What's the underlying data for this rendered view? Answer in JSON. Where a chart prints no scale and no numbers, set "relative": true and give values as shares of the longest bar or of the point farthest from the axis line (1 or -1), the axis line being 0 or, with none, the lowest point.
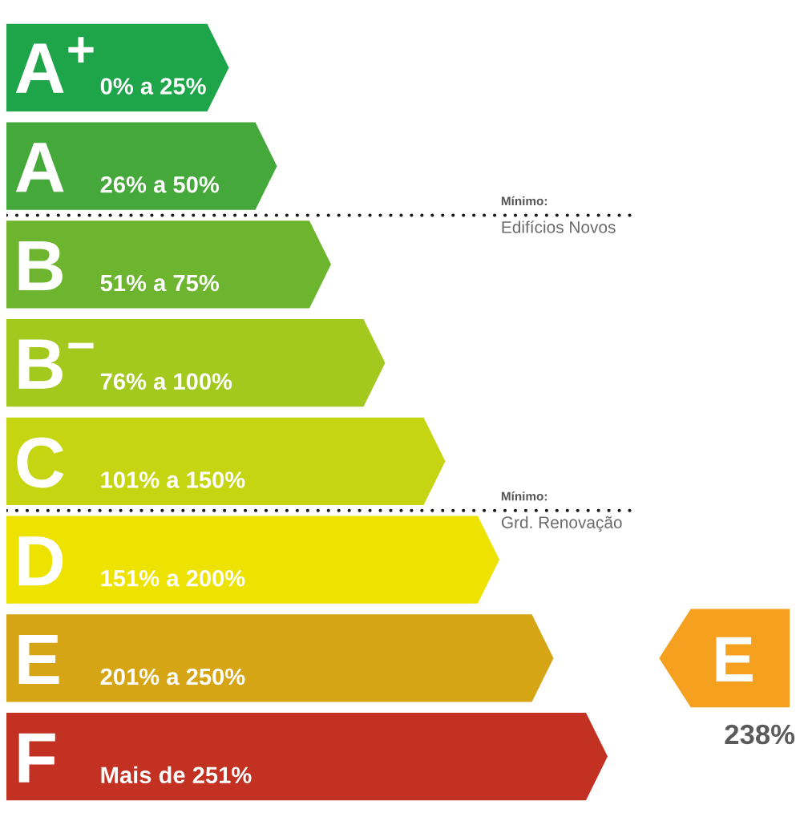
{
  "chart_data": {
    "type": "bar",
    "orientation": "horizontal",
    "relative": true,
    "categories": [
      "A+",
      "A",
      "B",
      "B−",
      "C",
      "D",
      "E",
      "F"
    ],
    "values": [
      0.37,
      0.45,
      0.54,
      0.63,
      0.73,
      0.82,
      0.91,
      1
    ],
    "colors": [
      "#1ea54a",
      "#45a83a",
      "#6db52f",
      "#a3c91f",
      "#c6d512",
      "#eee200",
      "#d6a516",
      "#c23122"
    ],
    "needle": "E",
    "annotations": [
      "0% a 25%",
      "26% a 50%",
      "51% a 75%",
      "76% a 100%",
      "101% a 150%",
      "151% a 200%",
      "201% a 250%",
      "Mais de 251%",
      "Mínimo:\nEdifícios Novos",
      "Mínimo:\nGrd. Renovação",
      "238%"
    ]
  }
}
